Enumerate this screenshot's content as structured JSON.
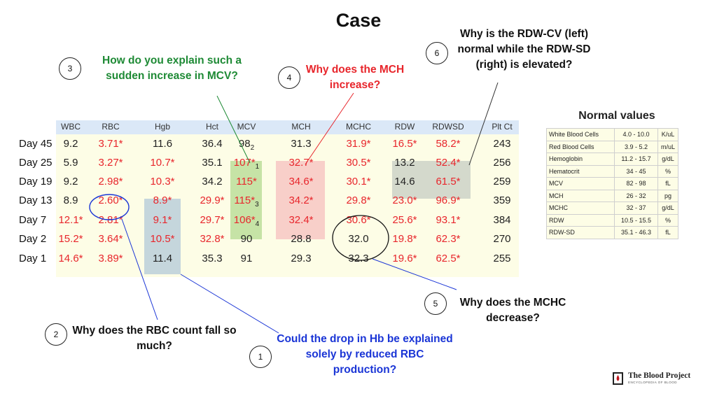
{
  "title": "Case",
  "lab_table": {
    "columns": [
      "WBC",
      "RBC",
      "Hgb",
      "Hct",
      "MCV",
      "MCH",
      "MCHC",
      "RDW",
      "RDWSD",
      "Plt Ct"
    ],
    "rows": [
      {
        "day": "Day 45",
        "cells": [
          {
            "text": "9.2"
          },
          {
            "text": "3.71*",
            "abnormal": true
          },
          {
            "text": "11.6"
          },
          {
            "text": "36.4"
          },
          {
            "text": "98",
            "sub": "2"
          },
          {
            "text": "31.3"
          },
          {
            "text": "31.9*",
            "abnormal": true
          },
          {
            "text": "16.5*",
            "abnormal": true
          },
          {
            "text": "58.2*",
            "abnormal": true
          },
          {
            "text": "243"
          }
        ]
      },
      {
        "day": "Day 25",
        "cells": [
          {
            "text": "5.9"
          },
          {
            "text": "3.27*",
            "abnormal": true
          },
          {
            "text": "10.7*",
            "abnormal": true
          },
          {
            "text": "35.1"
          },
          {
            "text": "107*",
            "sub": "1",
            "abnormal": true
          },
          {
            "text": "32.7*",
            "abnormal": true
          },
          {
            "text": "30.5*",
            "abnormal": true
          },
          {
            "text": "13.2"
          },
          {
            "text": "52.4*",
            "abnormal": true
          },
          {
            "text": "256"
          }
        ]
      },
      {
        "day": "Day 19",
        "cells": [
          {
            "text": "9.2"
          },
          {
            "text": "2.98*",
            "abnormal": true
          },
          {
            "text": "10.3*",
            "abnormal": true
          },
          {
            "text": "34.2"
          },
          {
            "text": "115*",
            "abnormal": true
          },
          {
            "text": "34.6*",
            "abnormal": true
          },
          {
            "text": "30.1*",
            "abnormal": true
          },
          {
            "text": "14.6"
          },
          {
            "text": "61.5*",
            "abnormal": true
          },
          {
            "text": "259"
          }
        ]
      },
      {
        "day": "Day 13",
        "cells": [
          {
            "text": "8.9"
          },
          {
            "text": "2.60*",
            "abnormal": true
          },
          {
            "text": "8.9*",
            "abnormal": true
          },
          {
            "text": "29.9*",
            "abnormal": true
          },
          {
            "text": "115*",
            "sub": "3",
            "abnormal": true
          },
          {
            "text": "34.2*",
            "abnormal": true
          },
          {
            "text": "29.8*",
            "abnormal": true
          },
          {
            "text": "23.0*",
            "abnormal": true
          },
          {
            "text": "96.9*",
            "abnormal": true
          },
          {
            "text": "359"
          }
        ]
      },
      {
        "day": "Day 7",
        "cells": [
          {
            "text": "12.1*",
            "abnormal": true
          },
          {
            "text": "2.81*",
            "abnormal": true
          },
          {
            "text": "9.1*",
            "abnormal": true
          },
          {
            "text": "29.7*",
            "abnormal": true
          },
          {
            "text": "106*",
            "sub": "4",
            "abnormal": true
          },
          {
            "text": "32.4*",
            "abnormal": true
          },
          {
            "text": "30.6*",
            "abnormal": true
          },
          {
            "text": "25.6*",
            "abnormal": true
          },
          {
            "text": "93.1*",
            "abnormal": true
          },
          {
            "text": "384"
          }
        ]
      },
      {
        "day": "Day 2",
        "cells": [
          {
            "text": "15.2*",
            "abnormal": true
          },
          {
            "text": "3.64*",
            "abnormal": true
          },
          {
            "text": "10.5*",
            "abnormal": true
          },
          {
            "text": "32.8*",
            "abnormal": true
          },
          {
            "text": "90"
          },
          {
            "text": "28.8"
          },
          {
            "text": "32.0"
          },
          {
            "text": "19.8*",
            "abnormal": true
          },
          {
            "text": "62.3*",
            "abnormal": true
          },
          {
            "text": "270"
          }
        ]
      },
      {
        "day": "Day 1",
        "cells": [
          {
            "text": "14.6*",
            "abnormal": true
          },
          {
            "text": "3.89*",
            "abnormal": true
          },
          {
            "text": "11.4"
          },
          {
            "text": "35.3"
          },
          {
            "text": "91"
          },
          {
            "text": "29.3"
          },
          {
            "text": "32.3"
          },
          {
            "text": "19.6*",
            "abnormal": true
          },
          {
            "text": "62.5*",
            "abnormal": true
          },
          {
            "text": "255"
          }
        ]
      }
    ]
  },
  "questions": [
    {
      "number": "1",
      "text": "Could the drop in Hb be explained solely by reduced RBC production?",
      "color": "#1a35d6"
    },
    {
      "number": "2",
      "text": "Why does the RBC count fall so much?",
      "color": "#111111"
    },
    {
      "number": "3",
      "text": "How do you explain such a sudden increase in MCV?",
      "color": "#1e8a35"
    },
    {
      "number": "4",
      "text": "Why does the MCH increase?",
      "color": "#e8262c"
    },
    {
      "number": "5",
      "text": "Why does the MCHC decrease?",
      "color": "#111111"
    },
    {
      "number": "6",
      "text": "Why is the RDW-CV (left) normal while the RDW-SD (right) is elevated?",
      "color": "#111111"
    }
  ],
  "normal_values": {
    "title": "Normal values",
    "rows": [
      {
        "name": "White Blood Cells",
        "range": "4.0 - 10.0",
        "unit": "K/uL"
      },
      {
        "name": "Red Blood Cells",
        "range": "3.9 - 5.2",
        "unit": "m/uL"
      },
      {
        "name": "Hemoglobin",
        "range": "11.2 - 15.7",
        "unit": "g/dL"
      },
      {
        "name": "Hematocrit",
        "range": "34 - 45",
        "unit": "%"
      },
      {
        "name": "MCV",
        "range": "82 - 98",
        "unit": "fL"
      },
      {
        "name": "MCH",
        "range": "26 - 32",
        "unit": "pg"
      },
      {
        "name": "MCHC",
        "range": "32 - 37",
        "unit": "g/dL"
      },
      {
        "name": "RDW",
        "range": "10.5 - 15.5",
        "unit": "%"
      },
      {
        "name": "RDW-SD",
        "range": "35.1 - 46.3",
        "unit": "fL"
      }
    ]
  },
  "logo": {
    "name": "The Blood Project",
    "tagline": "ENCYCLOPEDIA OF BLOOD"
  },
  "colors": {
    "abnormal": "#e8262c",
    "header_bg": "#dbe8f7",
    "table_bg": "#fdfde6",
    "mcv_highlight": "#c6e3a6",
    "mch_highlight": "#f8cfc9",
    "hgb_highlight": "#c5d6dc",
    "rdw_highlight": "#d4d9cc"
  }
}
